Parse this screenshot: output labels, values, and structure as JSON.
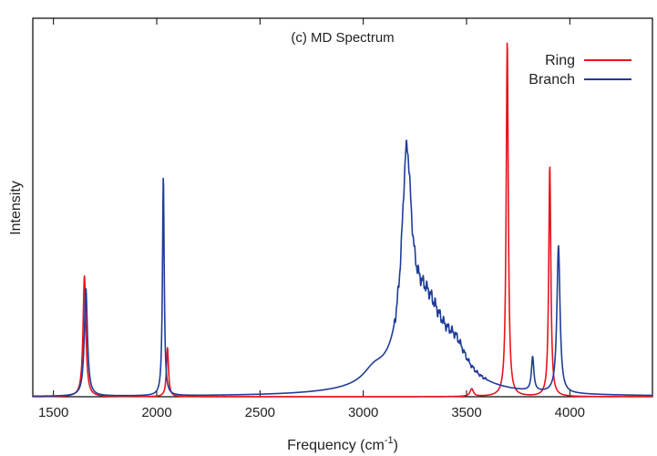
{
  "chart_data": {
    "type": "line",
    "title": "(c) MD Spectrum",
    "xlabel": "Frequency (cm",
    "xlabel_sup": "-1",
    "xlabel_end": ")",
    "ylabel": "Intensity",
    "xlim": [
      1400,
      4400
    ],
    "ylim": [
      0,
      1.0
    ],
    "x_ticks": [
      1500,
      2000,
      2500,
      3000,
      3500,
      4000
    ],
    "y_ticks_shown": false,
    "grid": false,
    "legend_position": "top-right",
    "series": [
      {
        "name": "Ring",
        "color": "#e8141b",
        "peaks": [
          {
            "center": 1650,
            "height": 0.32,
            "width": 8
          },
          {
            "center": 2052,
            "height": 0.13,
            "width": 6
          },
          {
            "center": 3525,
            "height": 0.02,
            "width": 10
          },
          {
            "center": 3697,
            "height": 0.94,
            "width": 6
          },
          {
            "center": 3903,
            "height": 0.61,
            "width": 6
          }
        ]
      },
      {
        "name": "Branch",
        "color": "#1f3d99",
        "peaks": [
          {
            "center": 1657,
            "height": 0.285,
            "width": 9
          },
          {
            "center": 2032,
            "height": 0.58,
            "width": 5
          },
          {
            "center": 3050,
            "height": 0.03,
            "width": 60
          },
          {
            "center": 3210,
            "height": 0.5,
            "width": 28
          },
          {
            "center": 3300,
            "height": 0.24,
            "width": 120
          },
          {
            "center": 3450,
            "height": 0.06,
            "width": 60
          },
          {
            "center": 3820,
            "height": 0.09,
            "width": 7
          },
          {
            "center": 3945,
            "height": 0.39,
            "width": 9
          }
        ]
      }
    ]
  }
}
